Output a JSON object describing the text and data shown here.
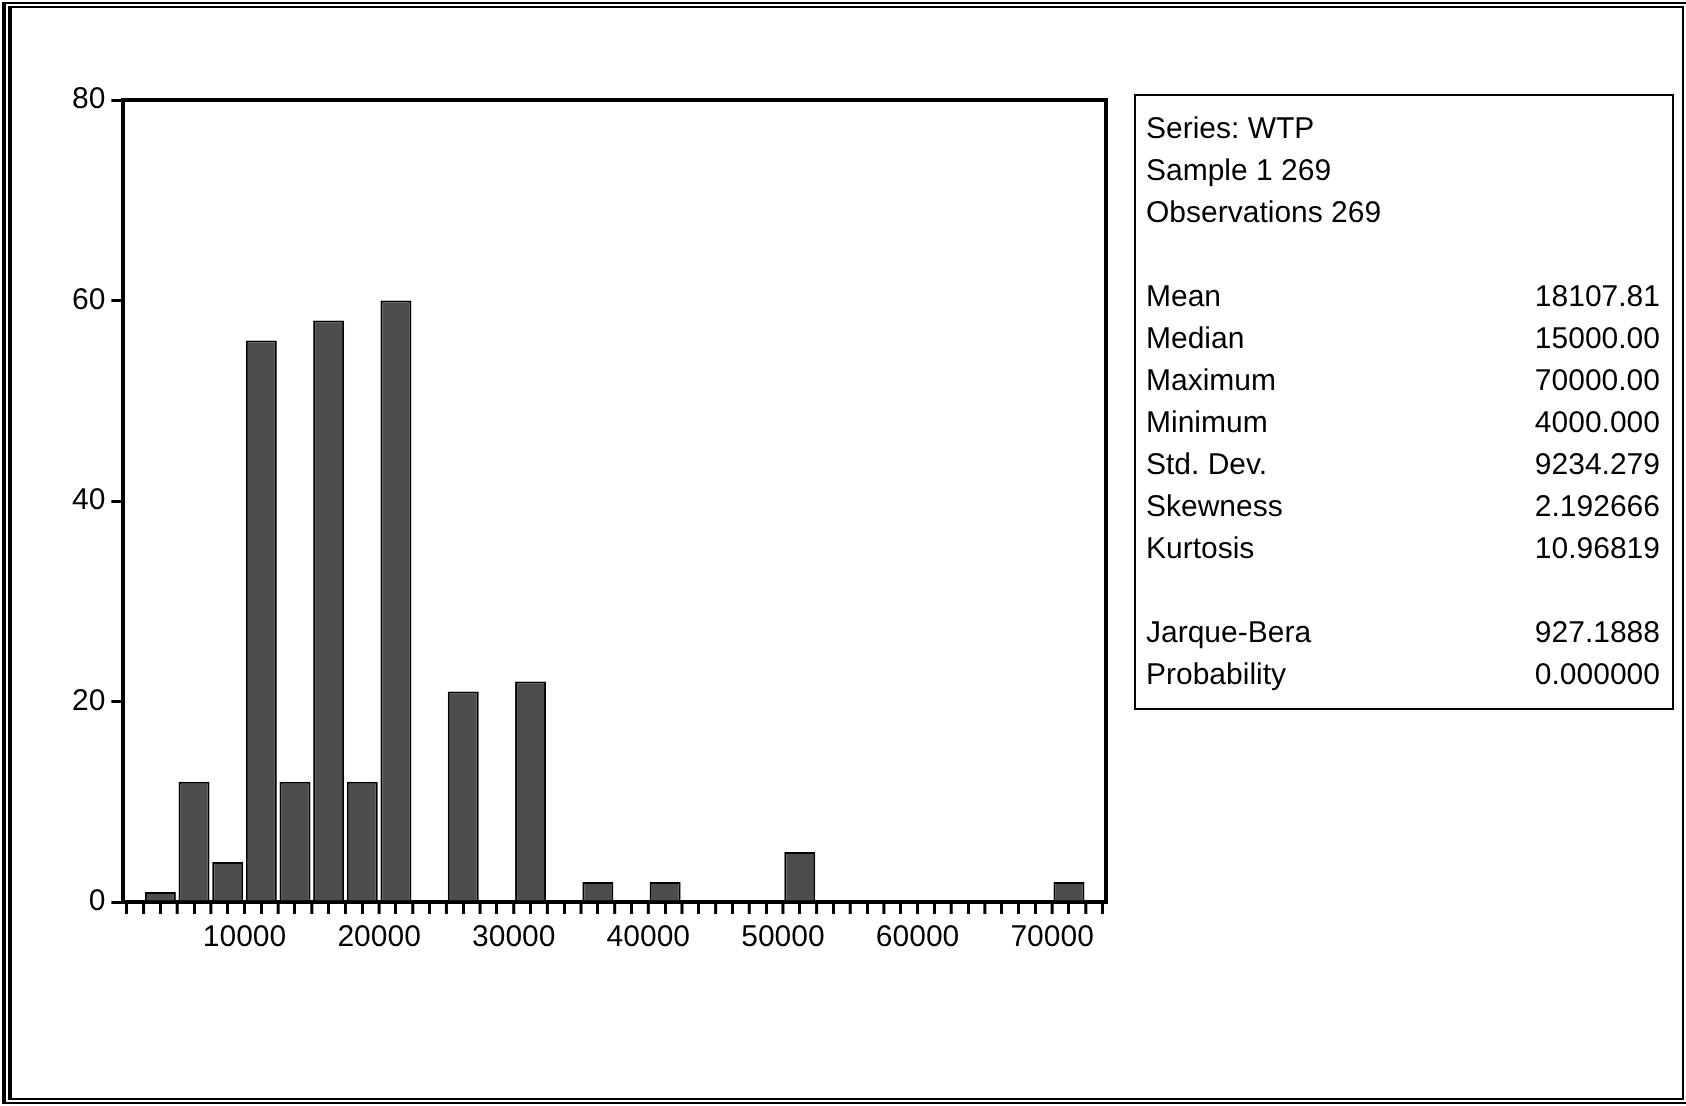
{
  "chart_data": {
    "type": "histogram",
    "bins": [
      2500,
      5000,
      7500,
      10000,
      12500,
      15000,
      17500,
      20000,
      22500,
      25000,
      27500,
      30000,
      32500,
      35000,
      37500,
      40000,
      42500,
      45000,
      47500,
      50000,
      52500,
      55000,
      57500,
      60000,
      62500,
      65000,
      67500,
      70000,
      72500
    ],
    "values": [
      1,
      12,
      4,
      56,
      12,
      58,
      12,
      60,
      0,
      21,
      0,
      22,
      0,
      2,
      0,
      2,
      0,
      0,
      0,
      5,
      0,
      0,
      0,
      0,
      0,
      0,
      0,
      2
    ],
    "color": "#4d4d4d",
    "xlim": [
      1000,
      74000
    ],
    "xticks": [
      {
        "value": 2500,
        "label": null
      },
      {
        "value": 5000,
        "label": null
      },
      {
        "value": 7500,
        "label": null
      },
      10000,
      {
        "value": 12500,
        "label": null
      },
      {
        "value": 15000,
        "label": null
      },
      {
        "value": 17500,
        "label": null
      },
      20000,
      {
        "value": 22500,
        "label": null
      },
      {
        "value": 25000,
        "label": null
      },
      {
        "value": 27500,
        "label": null
      },
      30000,
      {
        "value": 32500,
        "label": null
      },
      {
        "value": 35000,
        "label": null
      },
      {
        "value": 37500,
        "label": null
      },
      40000,
      {
        "value": 42500,
        "label": null
      },
      {
        "value": 45000,
        "label": null
      },
      {
        "value": 47500,
        "label": null
      },
      50000,
      {
        "value": 52500,
        "label": null
      },
      {
        "value": 55000,
        "label": null
      },
      {
        "value": 57500,
        "label": null
      },
      60000,
      {
        "value": 62500,
        "label": null
      },
      {
        "value": 65000,
        "label": null
      },
      {
        "value": 67500,
        "label": null
      },
      70000,
      {
        "value": 72500,
        "label": null
      }
    ],
    "ylim": [
      0,
      80
    ],
    "yticks": [
      0,
      20,
      40,
      60,
      80
    ],
    "grid": false,
    "legend": false,
    "annotations": [
      "Series: WTP",
      "Sample 1 269",
      "Observations 269",
      "Mean 18107.81",
      "Median 15000.00",
      "Maximum 70000.00",
      "Minimum 4000.000",
      "Std. Dev. 9234.279",
      "Skewness 2.192666",
      "Kurtosis 10.96819",
      "Jarque-Bera 927.1888",
      "Probability 0.000000"
    ]
  }
}
